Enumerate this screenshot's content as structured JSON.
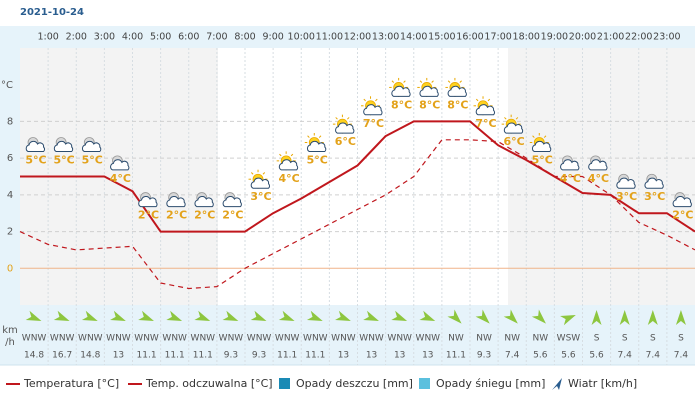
{
  "date": "2021-10-24",
  "chart_data": {
    "type": "line",
    "y_unit": "°C",
    "x": [
      0,
      1,
      2,
      3,
      4,
      5,
      6,
      7,
      8,
      9,
      10,
      11,
      12,
      13,
      14,
      15,
      16,
      17,
      18,
      19,
      20,
      21,
      22,
      23,
      24
    ],
    "xlim": [
      0,
      24
    ],
    "xticks": [
      {
        "value": 1,
        "label": "1:00"
      },
      {
        "value": 2,
        "label": "2:00"
      },
      {
        "value": 3,
        "label": "3:00"
      },
      {
        "value": 4,
        "label": "4:00"
      },
      {
        "value": 5,
        "label": "5:00"
      },
      {
        "value": 6,
        "label": "6:00"
      },
      {
        "value": 7,
        "label": "7:00"
      },
      {
        "value": 8,
        "label": "8:00"
      },
      {
        "value": 9,
        "label": "9:00"
      },
      {
        "value": 10,
        "label": "10:00"
      },
      {
        "value": 11,
        "label": "11:00"
      },
      {
        "value": 12,
        "label": "12:00"
      },
      {
        "value": 13,
        "label": "13:00"
      },
      {
        "value": 14,
        "label": "14:00"
      },
      {
        "value": 15,
        "label": "15:00"
      },
      {
        "value": 16,
        "label": "16:00"
      },
      {
        "value": 17,
        "label": "17:00"
      },
      {
        "value": 18,
        "label": "18:00"
      },
      {
        "value": 19,
        "label": "19:00"
      },
      {
        "value": 20,
        "label": "20:00"
      },
      {
        "value": 21,
        "label": "21:00"
      },
      {
        "value": 22,
        "label": "22:00"
      },
      {
        "value": 23,
        "label": "23:00"
      }
    ],
    "ylim": [
      -2,
      12
    ],
    "yticks": [
      0,
      2,
      4,
      6,
      8
    ],
    "grid": true,
    "series": [
      {
        "name": "Temperatura [°C]",
        "color": "#c0171d",
        "dash": false,
        "values": [
          5.0,
          5.0,
          5.0,
          5.0,
          4.2,
          2.0,
          2.0,
          2.0,
          2.0,
          3.0,
          3.8,
          4.7,
          5.6,
          7.2,
          8.0,
          8.0,
          8.0,
          6.7,
          5.9,
          5.0,
          4.1,
          4.0,
          3.0,
          3.0,
          2.0
        ]
      },
      {
        "name": "Temp. odczuwalna [°C]",
        "color": "#c0171d",
        "dash": true,
        "values": [
          2.0,
          1.3,
          1.0,
          1.1,
          1.2,
          -0.8,
          -1.1,
          -1.0,
          0.0,
          0.8,
          1.6,
          2.4,
          3.2,
          4.0,
          5.0,
          7.0,
          7.0,
          6.9,
          6.0,
          5.0,
          5.0,
          4.0,
          2.5,
          1.8,
          1.0
        ]
      }
    ],
    "forecast": {
      "values": [
        5,
        5,
        5,
        4,
        2,
        2,
        2,
        2,
        3,
        4,
        5,
        6,
        7,
        8,
        8,
        8,
        7,
        6,
        5,
        4,
        4,
        3,
        3,
        2
      ],
      "value_labels": [
        "5°C",
        "5°C",
        "5°C",
        "4°C",
        "2°C",
        "2°C",
        "2°C",
        "2°C",
        "3°C",
        "4°C",
        "5°C",
        "6°C",
        "7°C",
        "8°C",
        "8°C",
        "8°C",
        "7°C",
        "6°C",
        "5°C",
        "4°C",
        "4°C",
        "3°C",
        "3°C",
        "2°C"
      ]
    },
    "wind": {
      "unit_lines": [
        "km",
        "/h"
      ],
      "directions": [
        "WNW",
        "WNW",
        "WNW",
        "WNW",
        "WNW",
        "WNW",
        "WNW",
        "WNW",
        "WNW",
        "WNW",
        "WNW",
        "WNW",
        "WNW",
        "WNW",
        "WNW",
        "NW",
        "NW",
        "NW",
        "NW",
        "WSW",
        "S",
        "S",
        "S",
        "S"
      ],
      "speeds": [
        14.8,
        16.7,
        14.8,
        13,
        11.1,
        11.1,
        11.1,
        9.3,
        9.3,
        11.1,
        11.1,
        13,
        13,
        13,
        13,
        11.1,
        9.3,
        7.4,
        5.6,
        5.6,
        5.6,
        7.4,
        7.4,
        7.4
      ]
    },
    "legend": [
      "Temperatura [°C]",
      "Temp. odczuwalna [°C]",
      "Opady deszczu [mm]",
      "Opady śniegu [mm]",
      "Wiatr [km/h]"
    ]
  }
}
